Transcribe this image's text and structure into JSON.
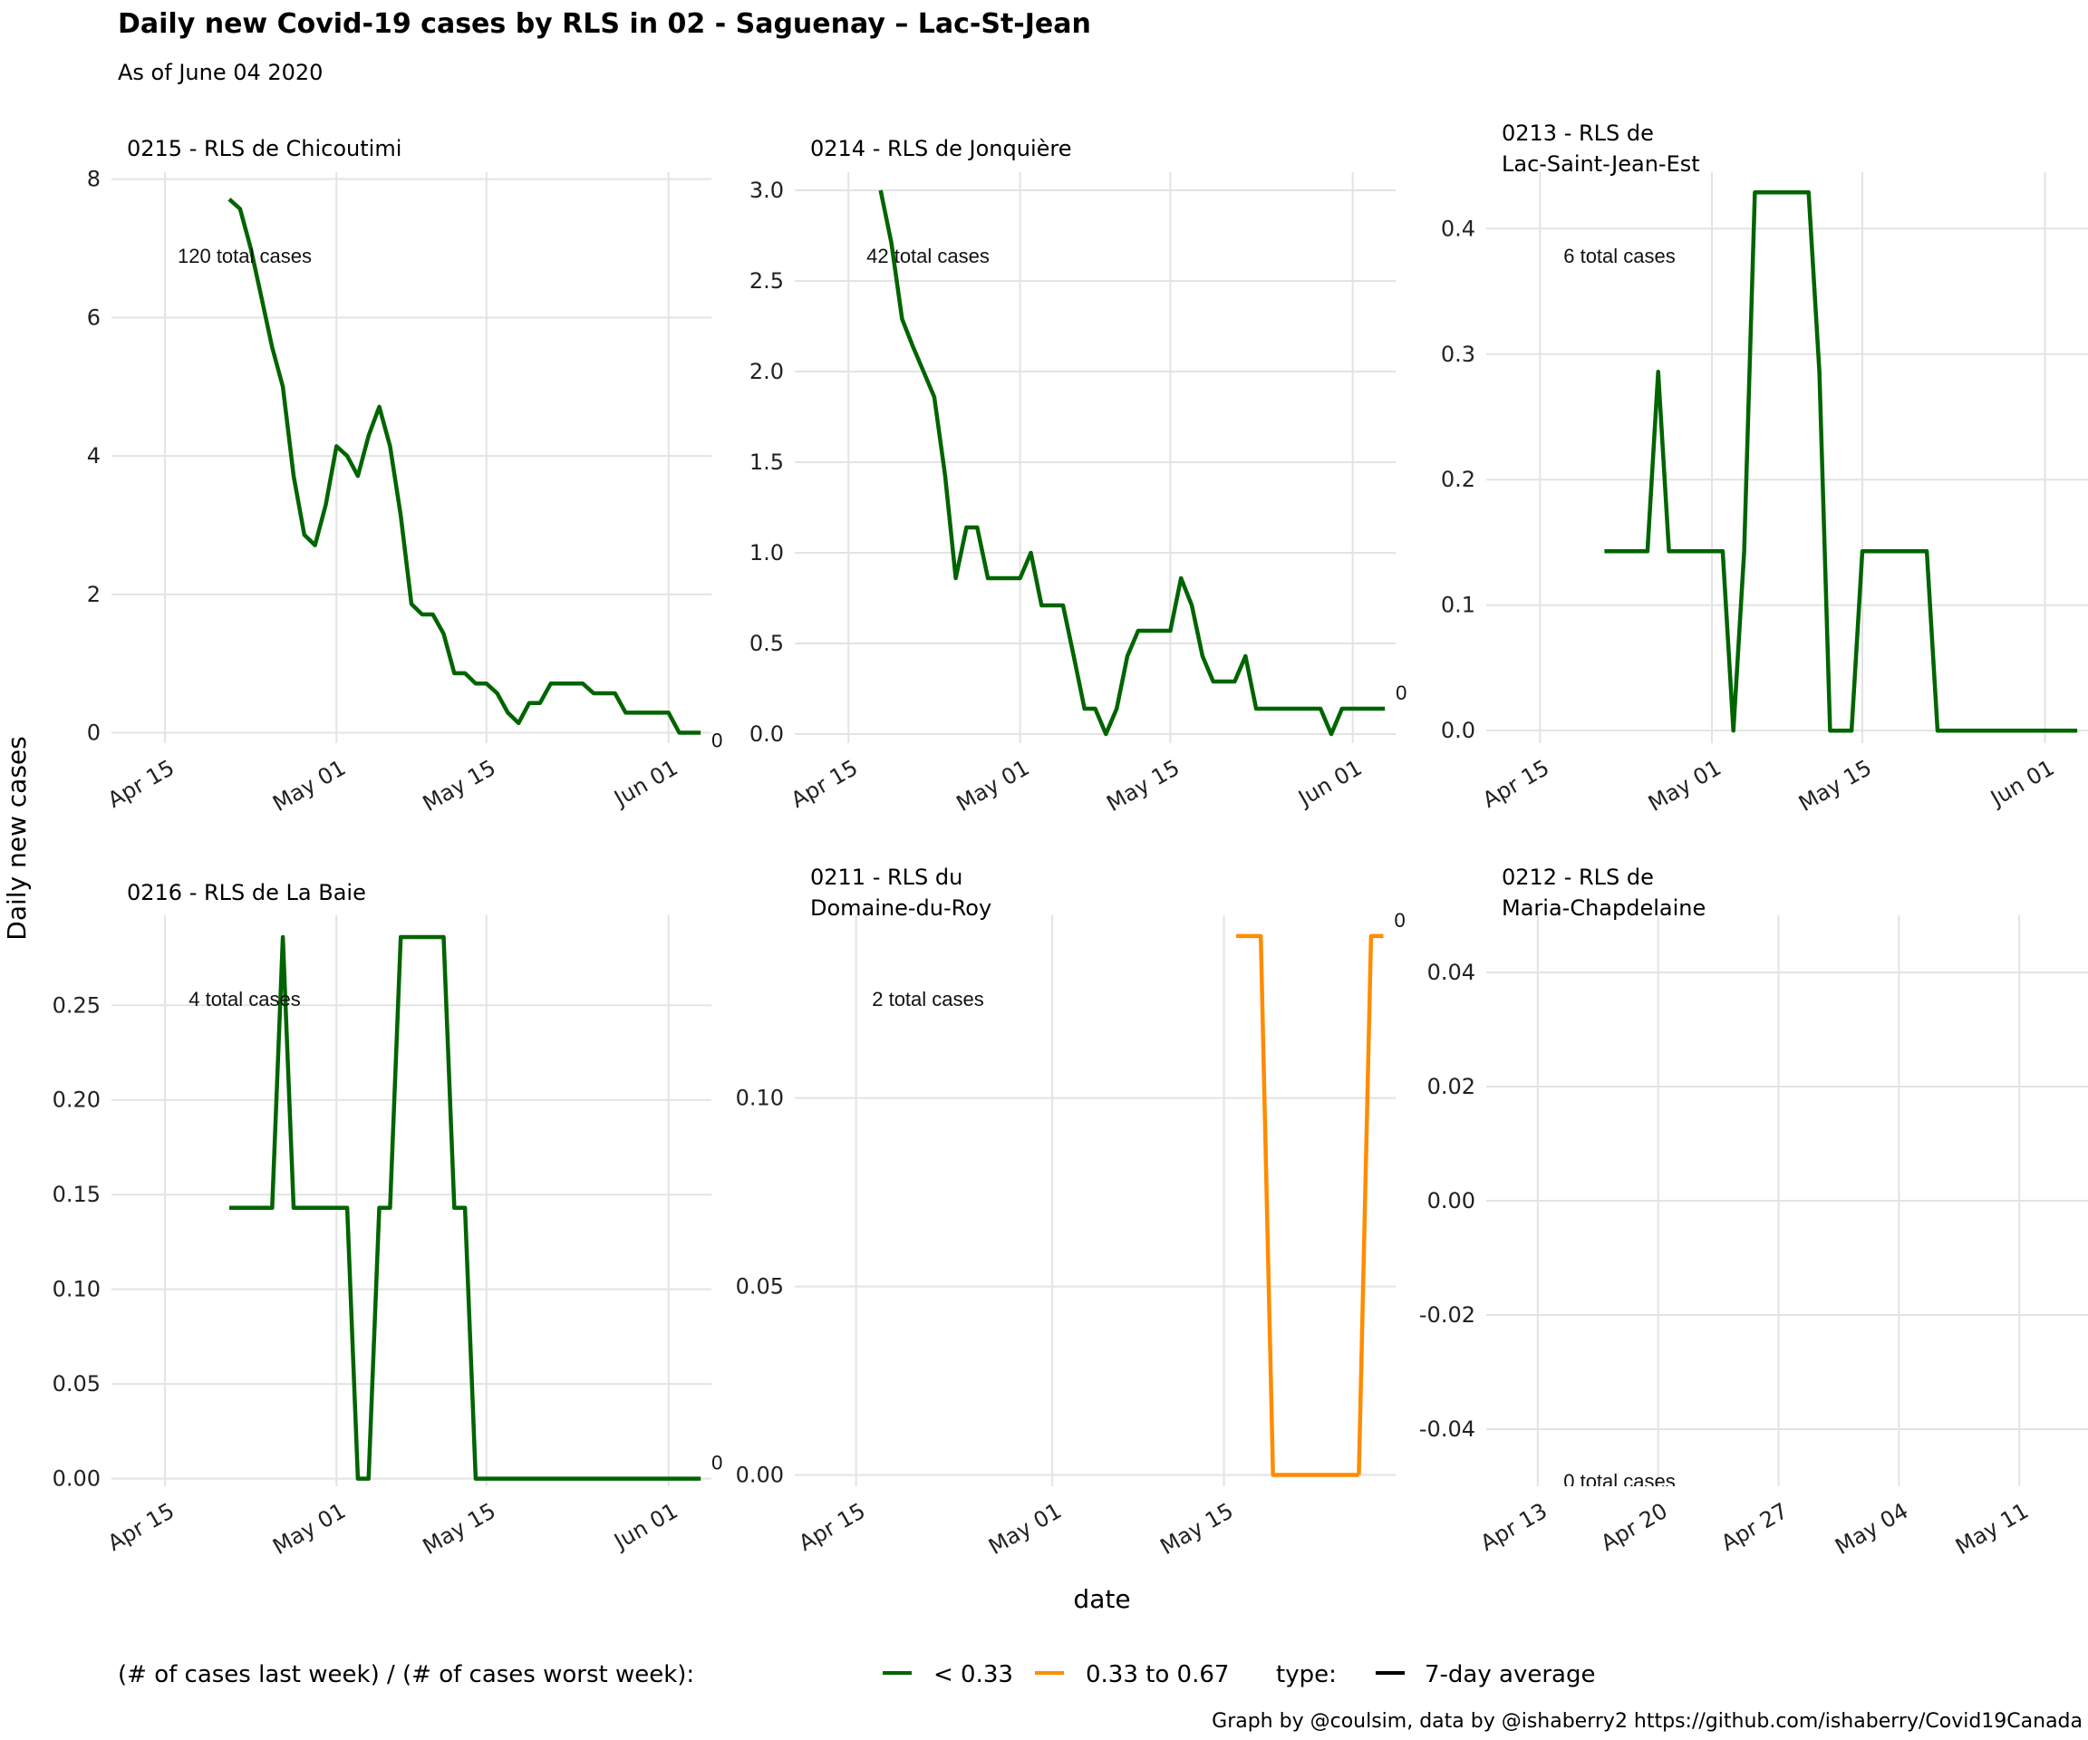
{
  "title": "Daily new Covid-19 cases by RLS in 02 - Saguenay – Lac-St-Jean",
  "subtitle": "As of June 04 2020",
  "x_axis_title": "date",
  "y_axis_title": "Daily new cases",
  "legend": {
    "ratio_title": "(# of cases last week) / (# of cases worst week):",
    "ratio_items": [
      {
        "label": "< 0.33",
        "color": "#006400"
      },
      {
        "label": "0.33 to 0.67",
        "color": "#FF8C00"
      }
    ],
    "type_title": "type:",
    "type_items": [
      {
        "label": "7-day average",
        "color": "#000000"
      }
    ]
  },
  "caption": "Graph by @coulsim, data by @ishaberry2 https://github.com/ishaberry/Covid19Canada",
  "chart_data": [
    {
      "type": "line",
      "title_lines": [
        "0215 - RLS de Chicoutimi"
      ],
      "total_label": "120 total cases",
      "end_label": "0",
      "x_ticks": [
        "Apr 15",
        "May 01",
        "May 15",
        "Jun 01"
      ],
      "y_ticks": [
        "0",
        "2",
        "4",
        "6",
        "8"
      ],
      "ylim": [
        -0.15,
        8.1
      ],
      "color": "#006400",
      "series": [
        {
          "x": [
            "2020-04-21",
            "2020-04-22",
            "2020-04-23",
            "2020-04-24",
            "2020-04-25",
            "2020-04-26",
            "2020-04-27",
            "2020-04-28",
            "2020-04-29",
            "2020-04-30",
            "2020-05-01",
            "2020-05-02",
            "2020-05-03",
            "2020-05-04",
            "2020-05-05",
            "2020-05-06",
            "2020-05-07",
            "2020-05-08",
            "2020-05-09",
            "2020-05-10",
            "2020-05-11",
            "2020-05-12",
            "2020-05-13",
            "2020-05-14",
            "2020-05-15",
            "2020-05-16",
            "2020-05-17",
            "2020-05-18",
            "2020-05-19",
            "2020-05-20",
            "2020-05-21",
            "2020-05-22",
            "2020-05-23",
            "2020-05-24",
            "2020-05-25",
            "2020-05-26",
            "2020-05-27",
            "2020-05-28",
            "2020-05-29",
            "2020-05-30",
            "2020-05-31",
            "2020-06-01",
            "2020-06-02",
            "2020-06-03",
            "2020-06-04"
          ],
          "y": [
            7.71,
            7.57,
            7.0,
            6.29,
            5.57,
            5.0,
            3.71,
            2.86,
            2.71,
            3.29,
            4.14,
            4.0,
            3.71,
            4.29,
            4.71,
            4.14,
            3.14,
            1.86,
            1.71,
            1.71,
            1.43,
            0.86,
            0.86,
            0.71,
            0.71,
            0.57,
            0.29,
            0.14,
            0.43,
            0.43,
            0.71,
            0.71,
            0.71,
            0.71,
            0.57,
            0.57,
            0.57,
            0.29,
            0.29,
            0.29,
            0.29,
            0.29,
            0.0,
            0.0,
            0.0
          ]
        }
      ],
      "segments": []
    },
    {
      "type": "line",
      "title_lines": [
        "0214 - RLS de Jonquière"
      ],
      "total_label": "42 total cases",
      "end_label": "0",
      "x_ticks": [
        "Apr 15",
        "May 01",
        "May 15",
        "Jun 01"
      ],
      "y_ticks": [
        "0.0",
        "0.5",
        "1.0",
        "1.5",
        "2.0",
        "2.5",
        "3.0"
      ],
      "ylim": [
        -0.05,
        3.1
      ],
      "color": "#006400",
      "series": [
        {
          "x": [
            "2020-04-18",
            "2020-04-19",
            "2020-04-20",
            "2020-04-21",
            "2020-04-22",
            "2020-04-23",
            "2020-04-24",
            "2020-04-25",
            "2020-04-26",
            "2020-04-27",
            "2020-04-28",
            "2020-04-29",
            "2020-04-30",
            "2020-05-01",
            "2020-05-02",
            "2020-05-03",
            "2020-05-04",
            "2020-05-05",
            "2020-05-06",
            "2020-05-07",
            "2020-05-08",
            "2020-05-09",
            "2020-05-10",
            "2020-05-11",
            "2020-05-12",
            "2020-05-13",
            "2020-05-14",
            "2020-05-15",
            "2020-05-16",
            "2020-05-17",
            "2020-05-18",
            "2020-05-19",
            "2020-05-20",
            "2020-05-21",
            "2020-05-22",
            "2020-05-23",
            "2020-05-24",
            "2020-05-25",
            "2020-05-26",
            "2020-05-27",
            "2020-05-28",
            "2020-05-29",
            "2020-05-30",
            "2020-05-31",
            "2020-06-01",
            "2020-06-02",
            "2020-06-03",
            "2020-06-04"
          ],
          "y": [
            3.0,
            2.71,
            2.29,
            2.14,
            2.0,
            1.86,
            1.43,
            0.86,
            1.14,
            1.14,
            0.86,
            0.86,
            0.86,
            0.86,
            1.0,
            0.71,
            0.71,
            0.71,
            0.43,
            0.14,
            0.14,
            0.0,
            0.14,
            0.43,
            0.57,
            0.57,
            0.57,
            0.57,
            0.86,
            0.71,
            0.43,
            0.29,
            0.29,
            0.29,
            0.43,
            0.14,
            0.14,
            0.14,
            0.14,
            0.14,
            0.14,
            0.14,
            0.0,
            0.14,
            0.14,
            0.14,
            0.14,
            0.14
          ]
        }
      ],
      "segments": []
    },
    {
      "type": "line",
      "title_lines": [
        "0213 - RLS de",
        "Lac-Saint-Jean-Est"
      ],
      "total_label": "6 total cases",
      "end_label": "0",
      "x_ticks": [
        "Apr 15",
        "May 01",
        "May 15",
        "Jun 01"
      ],
      "y_ticks": [
        "0.0",
        "0.1",
        "0.2",
        "0.3",
        "0.4"
      ],
      "ylim": [
        -0.01,
        0.445
      ],
      "color": "#006400",
      "series": [
        {
          "x": [
            "2020-04-21",
            "2020-04-22",
            "2020-04-23",
            "2020-04-24",
            "2020-04-25",
            "2020-04-26",
            "2020-04-27",
            "2020-04-28",
            "2020-04-29",
            "2020-04-30",
            "2020-05-01",
            "2020-05-02",
            "2020-05-03",
            "2020-05-04",
            "2020-05-05",
            "2020-05-06",
            "2020-05-07",
            "2020-05-08",
            "2020-05-09",
            "2020-05-10",
            "2020-05-11",
            "2020-05-12",
            "2020-05-13",
            "2020-05-14",
            "2020-05-15",
            "2020-05-16",
            "2020-05-17",
            "2020-05-18",
            "2020-05-19",
            "2020-05-20",
            "2020-05-21",
            "2020-05-22",
            "2020-05-23",
            "2020-05-24",
            "2020-05-25",
            "2020-05-26",
            "2020-05-27",
            "2020-05-28",
            "2020-05-29",
            "2020-05-30",
            "2020-05-31",
            "2020-06-01",
            "2020-06-02",
            "2020-06-03",
            "2020-06-04"
          ],
          "y": [
            0.143,
            0.143,
            0.143,
            0.143,
            0.143,
            0.286,
            0.143,
            0.143,
            0.143,
            0.143,
            0.143,
            0.143,
            0.0,
            0.143,
            0.429,
            0.429,
            0.429,
            0.429,
            0.429,
            0.429,
            0.286,
            0.0,
            0.0,
            0.0,
            0.143,
            0.143,
            0.143,
            0.143,
            0.143,
            0.143,
            0.143,
            0.0,
            0.0,
            0.0,
            0.0,
            0.0,
            0.0,
            0.0,
            0.0,
            0.0,
            0.0,
            0.0,
            0.0,
            0.0,
            0.0
          ]
        }
      ],
      "segments": []
    },
    {
      "type": "line",
      "title_lines": [
        "0216 - RLS de La Baie"
      ],
      "total_label": "4 total cases",
      "end_label": "0",
      "x_ticks": [
        "Apr 15",
        "May 01",
        "May 15",
        "Jun 01"
      ],
      "y_ticks": [
        "0.00",
        "0.05",
        "0.10",
        "0.15",
        "0.20",
        "0.25"
      ],
      "ylim": [
        -0.004,
        0.2975
      ],
      "color": "#006400",
      "series": [
        {
          "x": [
            "2020-04-21",
            "2020-04-22",
            "2020-04-23",
            "2020-04-24",
            "2020-04-25",
            "2020-04-26",
            "2020-04-27",
            "2020-04-28",
            "2020-04-29",
            "2020-04-30",
            "2020-05-01",
            "2020-05-02",
            "2020-05-03",
            "2020-05-04",
            "2020-05-05",
            "2020-05-06",
            "2020-05-07",
            "2020-05-08",
            "2020-05-09",
            "2020-05-10",
            "2020-05-11",
            "2020-05-12",
            "2020-05-13",
            "2020-05-14",
            "2020-05-15",
            "2020-05-16",
            "2020-05-17",
            "2020-05-18",
            "2020-05-19",
            "2020-05-20",
            "2020-05-21",
            "2020-05-22",
            "2020-05-23",
            "2020-05-24",
            "2020-05-25",
            "2020-05-26",
            "2020-05-27",
            "2020-05-28",
            "2020-05-29",
            "2020-05-30",
            "2020-05-31",
            "2020-06-01",
            "2020-06-02",
            "2020-06-03",
            "2020-06-04"
          ],
          "y": [
            0.143,
            0.143,
            0.143,
            0.143,
            0.143,
            0.286,
            0.143,
            0.143,
            0.143,
            0.143,
            0.143,
            0.143,
            0.0,
            0.0,
            0.143,
            0.143,
            0.286,
            0.286,
            0.286,
            0.286,
            0.286,
            0.143,
            0.143,
            0.0,
            0.0,
            0.0,
            0.0,
            0.0,
            0.0,
            0.0,
            0.0,
            0.0,
            0.0,
            0.0,
            0.0,
            0.0,
            0.0,
            0.0,
            0.0,
            0.0,
            0.0,
            0.0,
            0.0,
            0.0,
            0.0
          ]
        }
      ],
      "segments": []
    },
    {
      "type": "line",
      "title_lines": [
        "0211 - RLS du",
        "Domaine-du-Roy"
      ],
      "total_label": "2 total cases",
      "end_label": "0",
      "x_ticks": [
        "Apr 15",
        "May 01",
        "May 15"
      ],
      "y_ticks": [
        "0.00",
        "0.05",
        "0.10"
      ],
      "ylim": [
        -0.003,
        0.1485
      ],
      "color": "#FF8C00",
      "series": [],
      "segments": [
        {
          "x": [
            "2020-05-16",
            "2020-05-17",
            "2020-05-18",
            "2020-05-19",
            "2020-05-20",
            "2020-05-21",
            "2020-05-22",
            "2020-05-23",
            "2020-05-24",
            "2020-05-25",
            "2020-05-26"
          ],
          "y": [
            0.143,
            0.143,
            0.143,
            0.0,
            0.0,
            0.0,
            0.0,
            0.0,
            0.0,
            0.0,
            0.0
          ]
        },
        {
          "x": [
            "2020-05-26",
            "2020-05-27",
            "2020-05-28"
          ],
          "y": [
            0.0,
            0.143,
            0.143
          ]
        }
      ]
    },
    {
      "type": "line",
      "title_lines": [
        "0212 - RLS de",
        "Maria-Chapdelaine"
      ],
      "total_label": "0 total cases",
      "end_label": "",
      "x_ticks": [
        "Apr 13",
        "Apr 20",
        "Apr 27",
        "May 04",
        "May 11"
      ],
      "y_ticks": [
        "-0.04",
        "-0.02",
        "0.00",
        "0.02",
        "0.04"
      ],
      "ylim": [
        -0.05,
        0.05
      ],
      "color": "#006400",
      "series": [],
      "segments": []
    }
  ]
}
